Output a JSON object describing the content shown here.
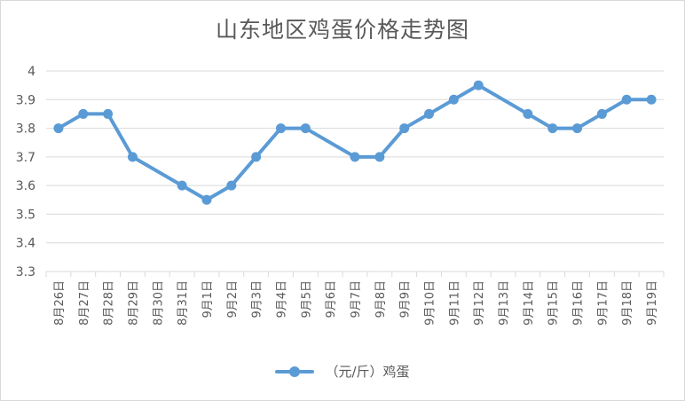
{
  "chart_data": {
    "type": "line",
    "title": "山东地区鸡蛋价格走势图",
    "categories": [
      "8月26日",
      "8月27日",
      "8月28日",
      "8月29日",
      "8月30日",
      "8月31日",
      "9月1日",
      "9月2日",
      "9月3日",
      "9月4日",
      "9月5日",
      "9月6日",
      "9月7日",
      "9月8日",
      "9月9日",
      "9月10日",
      "9月11日",
      "9月12日",
      "9月13日",
      "9月14日",
      "9月15日",
      "9月16日",
      "9月17日",
      "9月18日",
      "9月19日"
    ],
    "series": [
      {
        "name": "（元/斤）鸡蛋",
        "color": "#5b9bd5",
        "values": [
          3.8,
          3.85,
          3.85,
          3.7,
          null,
          3.6,
          3.55,
          3.6,
          3.7,
          3.8,
          3.8,
          null,
          3.7,
          3.7,
          3.8,
          3.85,
          3.9,
          3.95,
          null,
          3.85,
          3.8,
          3.8,
          3.85,
          3.9,
          3.9
        ]
      }
    ],
    "yticks": [
      "3.3",
      "3.4",
      "3.5",
      "3.6",
      "3.7",
      "3.8",
      "3.9",
      "4"
    ],
    "ylim": [
      3.3,
      4.0
    ],
    "grid": true,
    "legend_position": "bottom"
  }
}
